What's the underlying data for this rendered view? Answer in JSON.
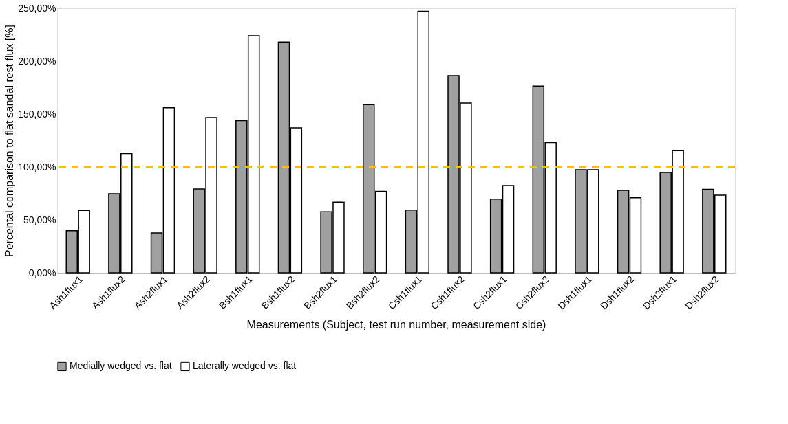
{
  "chart_data": {
    "type": "bar",
    "xlabel": "Measurements (Subject, test run number, measurement side)",
    "ylabel": "Percental comparison to flat sandal rest flux [%]",
    "categories": [
      "Ash1flux1",
      "Ash1flux2",
      "Ash2flux1",
      "Ash2flux2",
      "Bsh1flux1",
      "Bsh1flux2",
      "Bsh2flux1",
      "Bsh2flux2",
      "Csh1flux1",
      "Csh1flux2",
      "Csh2flux1",
      "Csh2flux2",
      "Dsh1flux1",
      "Dsh1flux2",
      "Dsh2flux1",
      "Dsh2flux2"
    ],
    "series": [
      {
        "name": "Medially wedged vs. flat",
        "color": "#a0a0a0",
        "values": [
          39.8,
          74.6,
          37.6,
          79.3,
          143.9,
          218,
          57.6,
          159,
          59.3,
          186.3,
          69.6,
          176.5,
          97.4,
          78,
          94.8,
          78.9
        ]
      },
      {
        "name": "Laterally wedged vs. flat",
        "color": "#ffffff",
        "values": [
          58.9,
          112.6,
          156,
          146.7,
          224,
          137,
          66.7,
          77,
          247,
          160.4,
          82.4,
          123,
          97.4,
          70.9,
          115.4,
          73.3
        ]
      }
    ],
    "ylim": [
      0,
      250
    ],
    "yticks": [
      {
        "value": 0,
        "label": "0,00%"
      },
      {
        "value": 50,
        "label": "50,00%"
      },
      {
        "value": 100,
        "label": "100,00%"
      },
      {
        "value": 150,
        "label": "150,00%"
      },
      {
        "value": 200,
        "label": "200,00%"
      },
      {
        "value": 250,
        "label": "250,00%"
      }
    ],
    "ref_lines": [
      {
        "axis": "y",
        "value": 100,
        "color": "#ffc000",
        "line_style": "dashed"
      }
    ],
    "grid": false,
    "legend": "bottom"
  }
}
